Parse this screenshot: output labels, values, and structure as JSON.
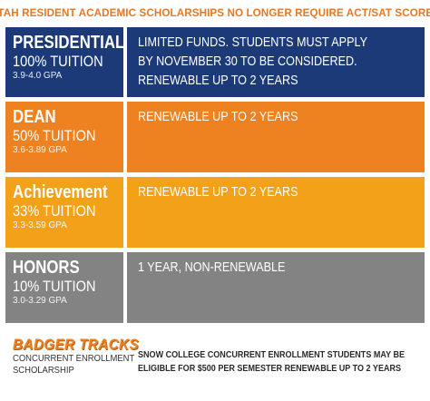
{
  "headline": "UTAH RESIDENT ACADEMIC SCHOLARSHIPS NO LONGER REQUIRE ACT/SAT SCORES",
  "colors": {
    "headline": "#e87722",
    "presidential": "#1c3a78",
    "dean": "#ee8120",
    "achievement": "#f2a118",
    "honors": "#838383"
  },
  "tiers": [
    {
      "name": "PRESIDENTIAL",
      "tuition": "100% TUITION",
      "gpa": "3.9-4.0 GPA",
      "description": [
        "LIMITED FUNDS. STUDENTS MUST APPLY",
        "BY NOVEMBER 30 TO BE CONSIDERED.",
        "RENEWABLE UP TO 2 YEARS"
      ]
    },
    {
      "name": "DEAN",
      "tuition": "50% TUITION",
      "gpa": "3.6-3.89 GPA",
      "description": [
        "RENEWABLE UP TO 2 YEARS"
      ]
    },
    {
      "name": "Achievement",
      "tuition": "33% TUITION",
      "gpa": "3.3-3.59 GPA",
      "description": [
        "RENEWABLE UP TO 2 YEARS"
      ]
    },
    {
      "name": "HONORS",
      "tuition": "10% TUITION",
      "gpa": "3.0-3.29 GPA",
      "description": [
        "1 YEAR, NON-RENEWABLE"
      ]
    }
  ],
  "concurrent": {
    "logo": "BADGER TRACKS",
    "caption_line1": "CONCURRENT ENROLLMENT",
    "caption_line2": "SCHOLARSHIP",
    "description_line1": "SNOW COLLEGE CONCURRENT ENROLLMENT STUDENTS MAY BE",
    "description_line2": "ELIGIBLE FOR $500 PER SEMESTER RENEWABLE UP TO 2 YEARS"
  }
}
